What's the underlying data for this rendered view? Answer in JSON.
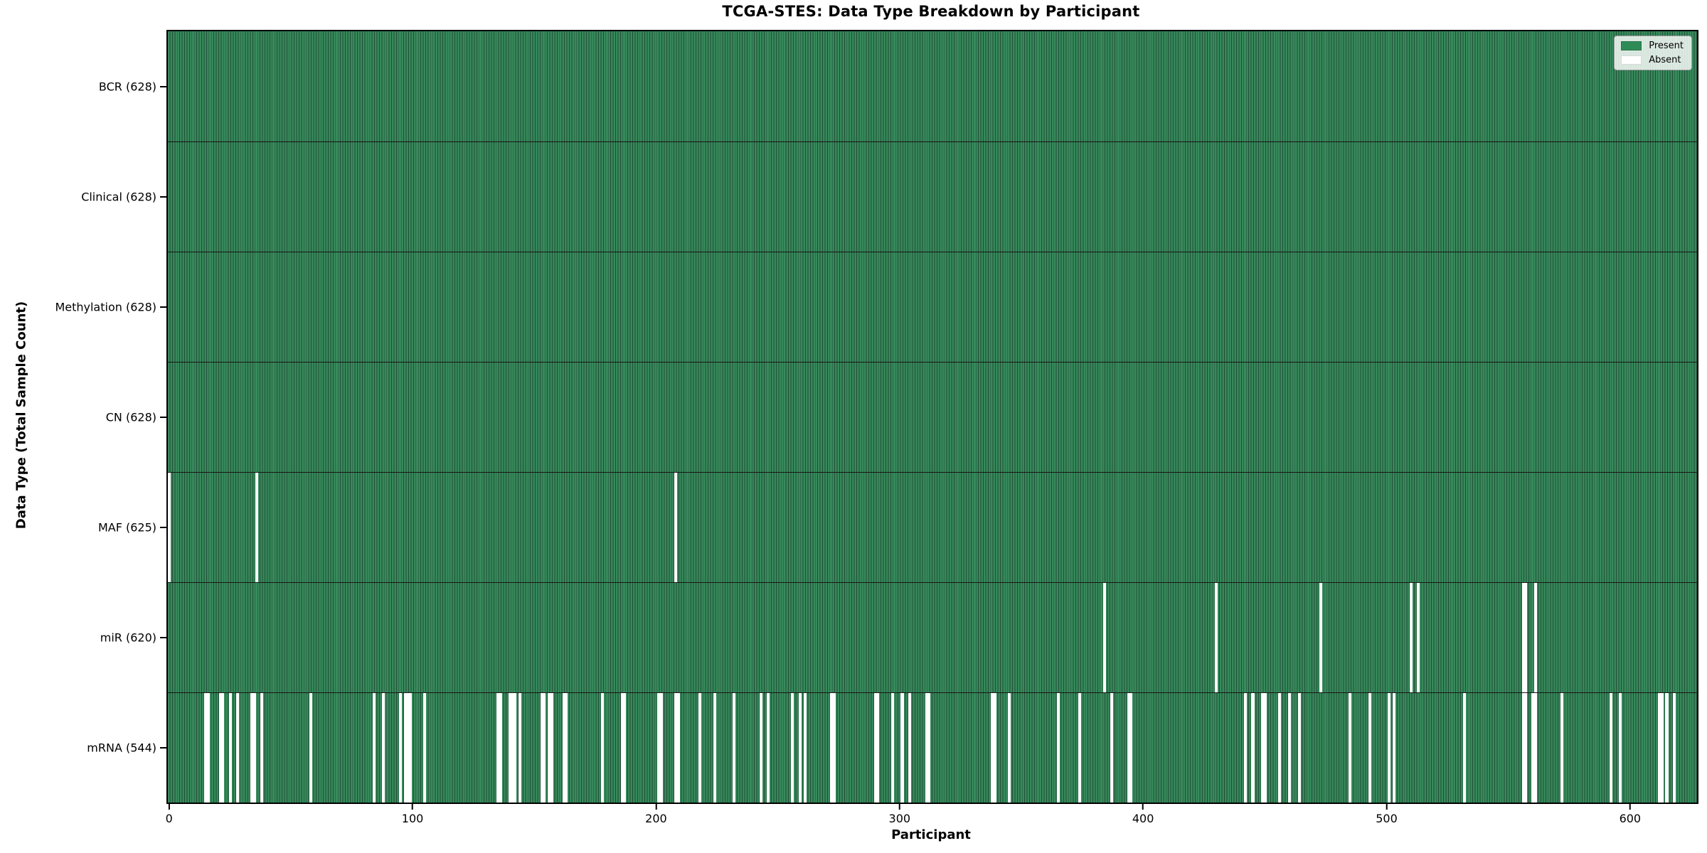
{
  "title": "TCGA-STES: Data Type Breakdown by Participant",
  "colors": {
    "present": "#2e8b57",
    "absent": "#ffffff",
    "bar_edge": "#1f4e36",
    "spine": "#000000"
  },
  "legend": {
    "entries": [
      {
        "label": "Present",
        "color_key": "present"
      },
      {
        "label": "Absent",
        "color_key": "absent"
      }
    ]
  },
  "chart_data": {
    "type": "heatmap",
    "title": "TCGA-STES: Data Type Breakdown by Participant",
    "xlabel": "Participant",
    "ylabel": "Data Type (Total Sample Count)",
    "legend_position": "upper right",
    "grid": false,
    "n_participants": 628,
    "x_ticks": [
      0,
      100,
      200,
      300,
      400,
      500,
      600
    ],
    "x_range": [
      -0.5,
      627.5
    ],
    "rows": [
      {
        "name": "BCR",
        "label": "BCR (628)",
        "present_count": 628,
        "absent_participants": []
      },
      {
        "name": "Clinical",
        "label": "Clinical (628)",
        "present_count": 628,
        "absent_participants": []
      },
      {
        "name": "Methylation",
        "label": "Methylation (628)",
        "present_count": 628,
        "absent_participants": []
      },
      {
        "name": "CN",
        "label": "CN (628)",
        "present_count": 628,
        "absent_participants": []
      },
      {
        "name": "MAF",
        "label": "MAF (625)",
        "present_count": 625,
        "absent_participants": [
          0,
          36,
          208
        ]
      },
      {
        "name": "miR",
        "label": "miR (620)",
        "present_count": 620,
        "absent_participants": [
          384,
          430,
          473,
          510,
          513,
          556,
          557,
          561
        ]
      },
      {
        "name": "mRNA",
        "label": "mRNA (544)",
        "present_count": 544,
        "absent_participants": [
          15,
          16,
          21,
          22,
          25,
          28,
          34,
          35,
          38,
          58,
          84,
          88,
          95,
          97,
          98,
          99,
          105,
          135,
          136,
          140,
          141,
          142,
          144,
          153,
          154,
          156,
          157,
          162,
          163,
          178,
          186,
          187,
          201,
          202,
          208,
          209,
          218,
          224,
          232,
          243,
          246,
          256,
          259,
          261,
          272,
          273,
          290,
          291,
          297,
          301,
          304,
          311,
          312,
          338,
          339,
          345,
          365,
          374,
          387,
          394,
          395,
          442,
          445,
          449,
          450,
          456,
          460,
          464,
          485,
          493,
          501,
          503,
          532,
          556,
          557,
          560,
          561,
          572,
          592,
          596,
          612,
          613,
          615,
          618
        ]
      }
    ]
  }
}
